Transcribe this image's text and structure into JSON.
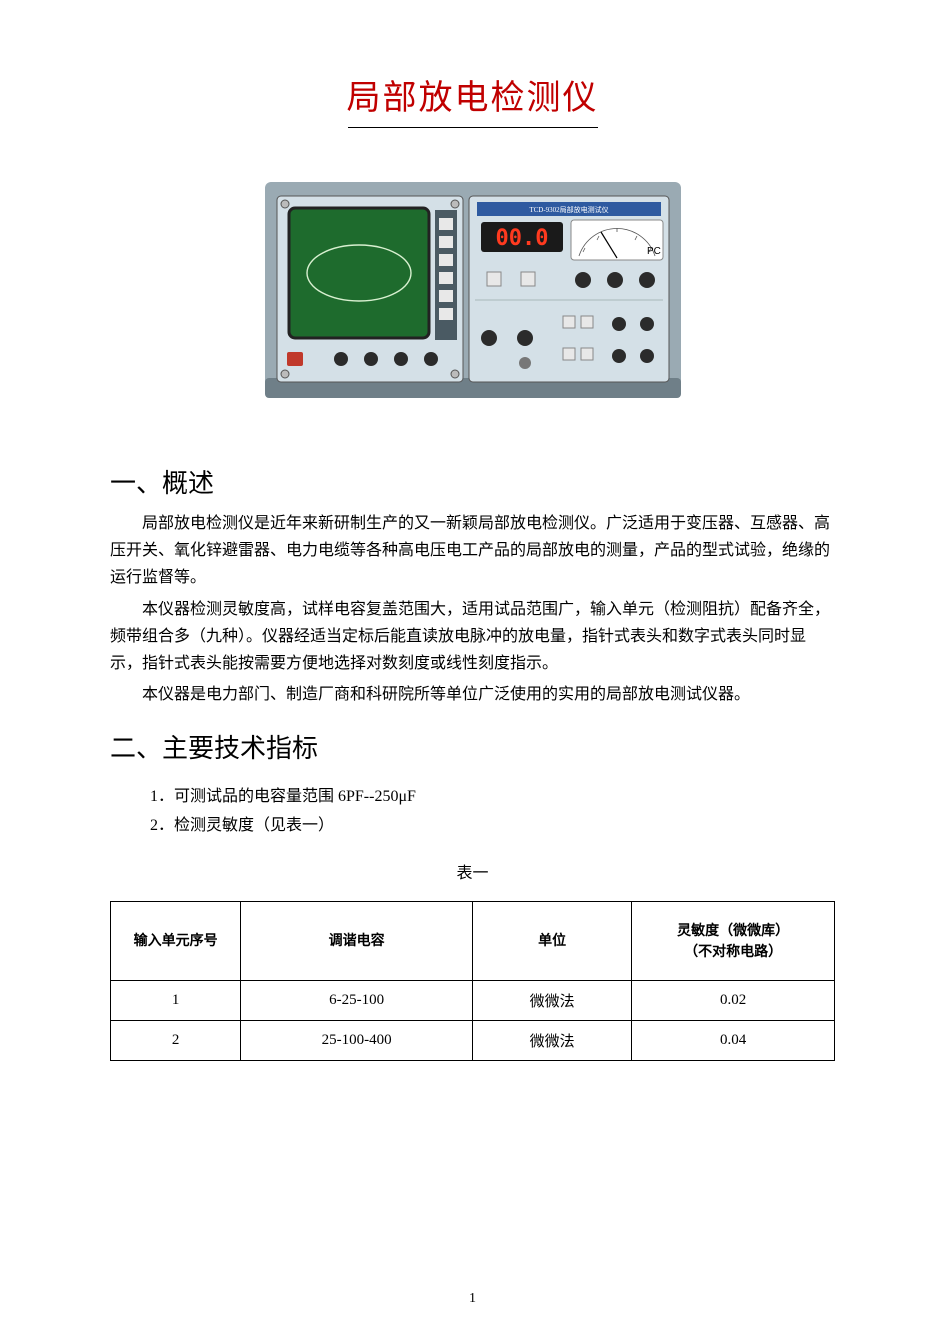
{
  "title": {
    "text": "局部放电检测仪",
    "color": "#c00000",
    "fontsize_pt": 26
  },
  "device_illustration": {
    "chassis_color": "#9aaab3",
    "chassis_shadow": "#6f7f88",
    "panel_color": "#d4e0e7",
    "screen_color": "#1e6b2d",
    "trace_color": "#d8f0d0",
    "led_digits": "00.0",
    "led_color": "#ff3a1f",
    "led_bg": "#1a1a1a",
    "meter_bg": "#ffffff",
    "meter_label": "PC",
    "model_label": "TCD-9302局部放电测试仪",
    "button_color": "#e8e8e8",
    "knob_color": "#2b2b2b",
    "power_btn_color": "#c0392b"
  },
  "section1": {
    "heading": "一、概述",
    "p1": "局部放电检测仪是近年来新研制生产的又一新颖局部放电检测仪。广泛适用于变压器、互感器、高压开关、氧化锌避雷器、电力电缆等各种高电压电工产品的局部放电的测量，产品的型式试验，绝缘的运行监督等。",
    "p2": "本仪器检测灵敏度高，试样电容复盖范围大，适用试品范围广，输入单元（检测阻抗）配备齐全，频带组合多（九种）。仪器经适当定标后能直读放电脉冲的放电量，指针式表头和数字式表头同时显示，指针式表头能按需要方便地选择对数刻度或线性刻度指示。",
    "p3": "本仪器是电力部门、制造厂商和科研院所等单位广泛使用的实用的局部放电测试仪器。"
  },
  "section2": {
    "heading": "二、主要技术指标",
    "item1": "1．可测试品的电容量范围 6PF--250μF",
    "item2": "2．检测灵敏度（见表一）",
    "table_caption": "表一",
    "table": {
      "columns": [
        "输入单元序号",
        "调谐电容",
        "单位",
        "灵敏度（微微库）\n（不对称电路）"
      ],
      "col_widths_pct": [
        18,
        32,
        22,
        28
      ],
      "rows": [
        [
          "1",
          "6-25-100",
          "微微法",
          "0.02"
        ],
        [
          "2",
          "25-100-400",
          "微微法",
          "0.04"
        ]
      ],
      "border_color": "#000000",
      "header_font": "SimHei"
    }
  },
  "page_number": "1"
}
